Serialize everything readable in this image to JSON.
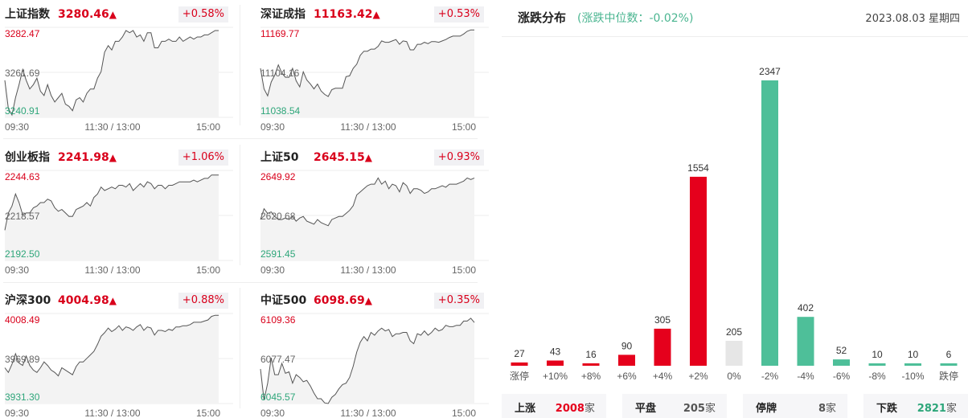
{
  "indices": [
    {
      "name": "上证指数",
      "value": "3280.46",
      "arrow": "▲",
      "change": "+0.58%",
      "y_high": "3282.47",
      "y_mid": "3261.69",
      "y_low": "3240.91",
      "x_labels": [
        "09:30",
        "11:30 / 13:00",
        "15:00"
      ],
      "series": [
        3258,
        3245,
        3242,
        3250,
        3256,
        3263,
        3258,
        3254,
        3256,
        3259,
        3253,
        3251,
        3256,
        3251,
        3248,
        3250,
        3252,
        3247,
        3246,
        3244,
        3249,
        3250,
        3248,
        3252,
        3254,
        3254,
        3259,
        3262,
        3271,
        3274,
        3272,
        3276,
        3276,
        3278,
        3281,
        3280,
        3281,
        3278,
        3279,
        3276,
        3280,
        3280,
        3273,
        3273,
        3276,
        3276,
        3277,
        3276,
        3276,
        3278,
        3276,
        3277,
        3278,
        3277,
        3278,
        3278,
        3279,
        3279,
        3280,
        3281,
        3281
      ]
    },
    {
      "name": "深证成指",
      "value": "11163.42",
      "arrow": "▲",
      "change": "+0.53%",
      "y_high": "11169.77",
      "y_mid": "11104.16",
      "y_low": "11038.54",
      "x_labels": [
        "09:30",
        "11:30 / 13:00",
        "15:00"
      ],
      "series": [
        11110,
        11080,
        11070,
        11090,
        11100,
        11115,
        11103,
        11097,
        11097,
        11110,
        11092,
        11083,
        11105,
        11093,
        11087,
        11080,
        11087,
        11077,
        11072,
        11069,
        11079,
        11081,
        11081,
        11081,
        11098,
        11099,
        11110,
        11116,
        11129,
        11135,
        11135,
        11138,
        11138,
        11142,
        11150,
        11148,
        11148,
        11150,
        11152,
        11145,
        11150,
        11149,
        11137,
        11137,
        11145,
        11145,
        11148,
        11146,
        11149,
        11149,
        11148,
        11150,
        11152,
        11155,
        11157,
        11157,
        11157,
        11160,
        11164,
        11166,
        11166
      ]
    },
    {
      "name": "创业板指",
      "value": "2241.98",
      "arrow": "▲",
      "change": "+1.06%",
      "y_high": "2244.63",
      "y_mid": "2218.57",
      "y_low": "2192.50",
      "x_labels": [
        "09:30",
        "11:30 / 13:00",
        "15:00"
      ],
      "series": [
        2210,
        2220,
        2224,
        2231,
        2226,
        2219,
        2220,
        2220,
        2223,
        2224,
        2226,
        2226,
        2228,
        2227,
        2223,
        2221,
        2222,
        2220,
        2218,
        2218,
        2222,
        2223,
        2224,
        2226,
        2224,
        2229,
        2231,
        2235,
        2233,
        2234,
        2235,
        2234,
        2236,
        2236,
        2235,
        2237,
        2233,
        2235,
        2237,
        2235,
        2238,
        2237,
        2234,
        2236,
        2236,
        2234,
        2236,
        2236,
        2237,
        2238,
        2238,
        2238,
        2238,
        2239,
        2238,
        2239,
        2240,
        2240,
        2242,
        2242,
        2242
      ]
    },
    {
      "name": "上证50",
      "value": "2645.15",
      "arrow": "▲",
      "change": "+0.93%",
      "y_high": "2649.92",
      "y_mid": "2620.68",
      "y_low": "2591.45",
      "x_labels": [
        "09:30",
        "11:30 / 13:00",
        "15:00"
      ],
      "series": [
        2618,
        2625,
        2622,
        2623,
        2620,
        2618,
        2618,
        2619,
        2618,
        2620,
        2617,
        2619,
        2620,
        2617,
        2616,
        2615,
        2618,
        2616,
        2615,
        2614,
        2618,
        2619,
        2620,
        2620,
        2622,
        2624,
        2627,
        2634,
        2636,
        2638,
        2640,
        2641,
        2641,
        2645,
        2641,
        2643,
        2638,
        2641,
        2640,
        2636,
        2642,
        2640,
        2635,
        2638,
        2638,
        2637,
        2635,
        2636,
        2638,
        2638,
        2639,
        2640,
        2639,
        2641,
        2641,
        2641,
        2642,
        2643,
        2645,
        2644,
        2645
      ]
    },
    {
      "name": "沪深300",
      "value": "4004.98",
      "arrow": "▲",
      "change": "+0.88%",
      "y_high": "4008.49",
      "y_mid": "3969.89",
      "y_low": "3931.30",
      "x_labels": [
        "09:30",
        "11:30 / 13:00",
        "15:00"
      ],
      "series": [
        3962,
        3958,
        3965,
        3974,
        3966,
        3964,
        3972,
        3964,
        3960,
        3958,
        3962,
        3967,
        3964,
        3960,
        3958,
        3955,
        3962,
        3960,
        3958,
        3956,
        3963,
        3967,
        3967,
        3970,
        3973,
        3976,
        3982,
        3989,
        3992,
        3996,
        3993,
        3995,
        3998,
        3994,
        3997,
        3996,
        3994,
        3997,
        3999,
        3994,
        3997,
        3996,
        3990,
        3994,
        3994,
        3993,
        3995,
        3994,
        3997,
        3997,
        3998,
        3998,
        3999,
        4001,
        4001,
        4001,
        4002,
        4003,
        4006,
        4007,
        4007
      ]
    },
    {
      "name": "中证500",
      "value": "6098.69",
      "arrow": "▲",
      "change": "+0.35%",
      "y_high": "6109.36",
      "y_mid": "6077.47",
      "y_low": "6045.57",
      "x_labels": [
        "09:30",
        "11:30 / 13:00",
        "15:00"
      ],
      "series": [
        6070,
        6048,
        6060,
        6078,
        6066,
        6066,
        6074,
        6067,
        6068,
        6060,
        6066,
        6064,
        6061,
        6062,
        6058,
        6053,
        6049,
        6049,
        6046,
        6043,
        6050,
        6052,
        6056,
        6059,
        6060,
        6064,
        6072,
        6082,
        6089,
        6093,
        6090,
        6096,
        6094,
        6097,
        6099,
        6097,
        6098,
        6093,
        6095,
        6095,
        6096,
        6096,
        6090,
        6088,
        6095,
        6094,
        6097,
        6094,
        6096,
        6099,
        6097,
        6098,
        6101,
        6100,
        6100,
        6101,
        6101,
        6104,
        6104,
        6106,
        6103
      ]
    }
  ],
  "distribution": {
    "title": "涨跌分布",
    "median_text": "(涨跌中位数：-0.02%)",
    "date": "2023.08.03 星期四"
  },
  "chart_data": {
    "type": "bar",
    "categories": [
      "涨停",
      "+10%",
      "+8%",
      "+6%",
      "+4%",
      "+2%",
      "0%",
      "-2%",
      "-4%",
      "-6%",
      "-8%",
      "-10%",
      "跌停"
    ],
    "values": [
      27,
      43,
      16,
      90,
      305,
      1554,
      205,
      2347,
      402,
      52,
      10,
      10,
      6
    ],
    "colors": {
      "up": "#e5001c",
      "flat": "#e6e6e6",
      "down": "#4ebf99"
    },
    "ylim": [
      0,
      2347
    ],
    "grid": false
  },
  "stats": [
    {
      "label": "上涨",
      "value": "2008",
      "unit": "家",
      "color": "#e5001c"
    },
    {
      "label": "平盘",
      "value": "205",
      "unit": "家",
      "color": "#555555"
    },
    {
      "label": "停牌",
      "value": "8",
      "unit": "家",
      "color": "#555555"
    },
    {
      "label": "下跌",
      "value": "2821",
      "unit": "家",
      "color": "#2ea67a"
    }
  ]
}
